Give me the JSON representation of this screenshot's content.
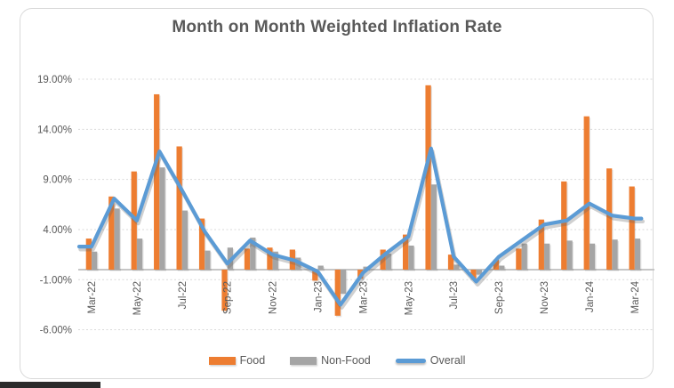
{
  "chart_data": {
    "type": "combo",
    "title": "Month on Month Weighted Inflation Rate",
    "categories": [
      "Mar-22",
      "Apr-22",
      "May-22",
      "Jun-22",
      "Jul-22",
      "Aug-22",
      "Sep-22",
      "Oct-22",
      "Nov-22",
      "Dec-22",
      "Jan-23",
      "Feb-23",
      "Mar-23",
      "Apr-23",
      "May-23",
      "Jun-23",
      "Jul-23",
      "Aug-23",
      "Sep-23",
      "Oct-23",
      "Nov-23",
      "Dec-23",
      "Jan-24",
      "Feb-24",
      "Mar-24"
    ],
    "series": [
      {
        "name": "Food",
        "type": "bar",
        "color": "#ED7D31",
        "values": [
          3.1,
          7.3,
          9.8,
          17.5,
          12.3,
          5.1,
          -4.1,
          2.1,
          2.2,
          2.0,
          -1.1,
          -4.6,
          -0.9,
          2.0,
          3.5,
          18.4,
          1.5,
          -0.9,
          1.0,
          2.1,
          5.0,
          8.8,
          15.3,
          10.1,
          8.3
        ]
      },
      {
        "name": "Non-Food",
        "type": "bar",
        "color": "#A5A5A5",
        "values": [
          1.8,
          6.1,
          3.1,
          10.2,
          5.9,
          1.9,
          2.2,
          3.2,
          1.8,
          1.2,
          0.4,
          -2.4,
          0.3,
          1.6,
          2.4,
          8.5,
          0.5,
          -0.5,
          0.4,
          2.6,
          2.6,
          2.9,
          2.6,
          3.0,
          3.1
        ]
      },
      {
        "name": "Overall",
        "type": "line",
        "color": "#5B9BD5",
        "values": [
          2.3,
          7.1,
          4.9,
          11.8,
          7.9,
          3.8,
          0.6,
          2.9,
          1.5,
          0.9,
          -0.2,
          -3.5,
          -0.3,
          1.6,
          3.3,
          12.1,
          1.3,
          -1.2,
          1.3,
          2.9,
          4.5,
          4.9,
          6.6,
          5.4,
          5.1
        ]
      }
    ],
    "y_axis": {
      "min": -6,
      "max": 19,
      "ticks": [
        19,
        14,
        9,
        4,
        -1,
        -6
      ],
      "tick_labels": [
        "19.00%",
        "14.00%",
        "9.00%",
        "4.00%",
        "-1.00%",
        "-6.00%"
      ]
    },
    "x_axis": {
      "visible_tick_labels": [
        "Mar-22",
        "May-22",
        "Jul-22",
        "Sep-22",
        "Nov-22",
        "Jan-23",
        "Mar-23",
        "May-23",
        "Jul-23",
        "Sep-23",
        "Nov-23",
        "Jan-24",
        "Mar-24"
      ],
      "label_rotation_deg": -90
    },
    "grid": "horizontal-dashed",
    "legend": {
      "position": "bottom",
      "items": [
        "Food",
        "Non-Food",
        "Overall"
      ]
    },
    "colors": {
      "grid": "#D9D9D9",
      "axis_baseline": "#C6C6C6",
      "text": "#595959"
    }
  }
}
